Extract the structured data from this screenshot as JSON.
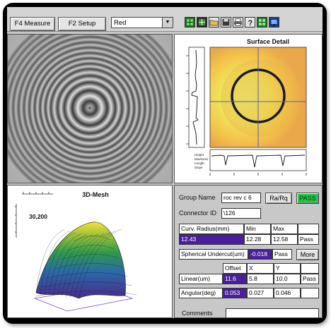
{
  "toolbar": {
    "measure_label": "F4 Measure",
    "setup_label": "F2 Setup",
    "color_select": "Red",
    "icons": [
      "grid-green-icon",
      "grid-dark-icon",
      "folder-open-icon",
      "save-disk-icon",
      "print-icon",
      "help-icon",
      "grid-light-icon",
      "monitor-icon"
    ]
  },
  "surface_panel": {
    "title": "Surface Detail"
  },
  "mesh_panel": {
    "title": "3D-Mesh",
    "scale_value": "30,200"
  },
  "data_panel": {
    "group_name_label": "Group Name",
    "group_name_value": "roc rev c 6",
    "ra_rq_label": "Ra/Rq",
    "status_badge": "PASS",
    "connector_id_label": "Connector ID",
    "connector_id_value": "\\126",
    "curv": {
      "label": "Curv. Radius(mm)",
      "min_label": "Min",
      "max_label": "Max",
      "value": "12.43",
      "min": "12.28",
      "max": "12.58",
      "result": "Pass"
    },
    "spherical": {
      "label": "Spherical Undercut(um)",
      "value": "-0.018",
      "result": "Pass",
      "more_label": "More"
    },
    "linear": {
      "offset_label": "Offset",
      "x_label": "X",
      "y_label": "Y",
      "label": "Linear(um)",
      "offset": "11.6",
      "x": "5.8",
      "y": "10.0",
      "result": "Pass"
    },
    "angular": {
      "label": "Angular(deg)",
      "value": "0.053",
      "x": "0.027",
      "y": "0.046"
    },
    "comments_label": "Comments",
    "comments_value": ""
  },
  "colors": {
    "highlight": "#4a1f9c",
    "pass_green": "#23c441",
    "ring_dark": "#1a1a1a"
  }
}
